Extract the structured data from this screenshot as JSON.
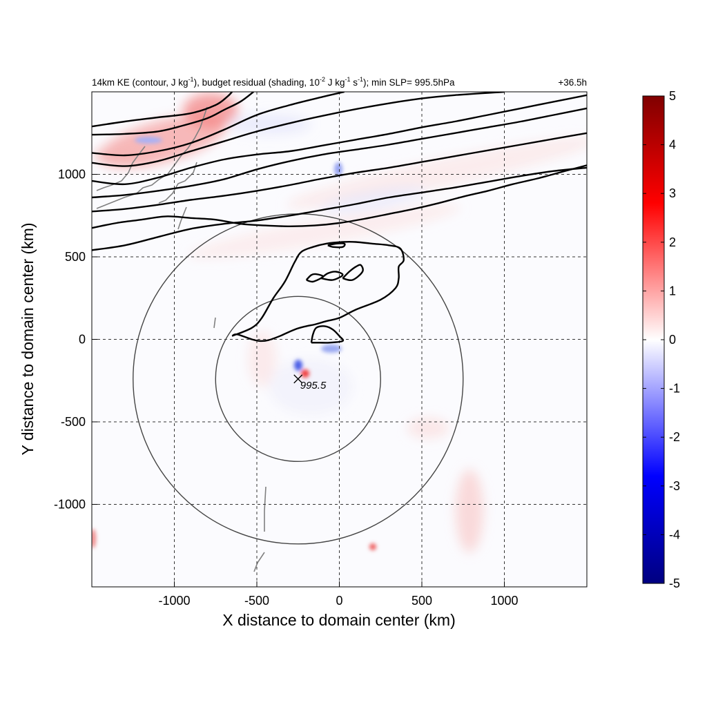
{
  "chart_data": {
    "type": "contour",
    "title_parts": {
      "p1": "14km KE (contour, J kg",
      "p1_sup": "-1",
      "p2": "), budget residual (shading, 10",
      "p2_sup": "-2",
      "p3": " J kg",
      "p3_sup": "-1",
      "p4": " s",
      "p4_sup": "-1",
      "p5": "); min SLP= 995.5hPa"
    },
    "time_label": "+36.5h",
    "xlabel": "X distance to domain center (km)",
    "ylabel": "Y distance to domain center (km)",
    "xlim": [
      -1500,
      1500
    ],
    "ylim": [
      -1500,
      1500
    ],
    "xticks": [
      -1000,
      -500,
      0,
      500,
      1000
    ],
    "yticks": [
      1000,
      500,
      0,
      -500,
      -1000
    ],
    "xtick_labels": [
      "-1000",
      "-500",
      "0",
      "500",
      "1000"
    ],
    "ytick_labels": [
      "1000",
      "500",
      "0",
      "-500",
      "-1000"
    ],
    "grid": "dashed",
    "colorbar": {
      "range": [
        -5,
        5
      ],
      "ticks": [
        5,
        4,
        3,
        2,
        1,
        0,
        -1,
        -2,
        -3,
        -4,
        -5
      ],
      "tick_labels": [
        "5",
        "4",
        "3",
        "2",
        "1",
        "0",
        "-1",
        "-2",
        "-3",
        "-4",
        "-5"
      ],
      "colormap": [
        "#000080",
        "#0000ff",
        "#ffffff",
        "#ff0000",
        "#800000"
      ]
    },
    "center_marker": {
      "x": -250,
      "y": -240,
      "label": "995.5"
    },
    "range_rings": [
      {
        "center_x": -250,
        "center_y": -240,
        "radius": 500
      },
      {
        "center_x": -250,
        "center_y": -240,
        "radius": 1000
      }
    ],
    "contours": [
      [
        [
          -1500,
          1290
        ],
        [
          -1300,
          1320
        ],
        [
          -1100,
          1345
        ],
        [
          -900,
          1370
        ],
        [
          -750,
          1420
        ],
        [
          -680,
          1470
        ],
        [
          -650,
          1500
        ]
      ],
      [
        [
          -1500,
          1240
        ],
        [
          -1300,
          1245
        ],
        [
          -1100,
          1260
        ],
        [
          -950,
          1295
        ],
        [
          -800,
          1340
        ],
        [
          -700,
          1390
        ],
        [
          -600,
          1440
        ],
        [
          -520,
          1500
        ]
      ],
      [
        [
          -1500,
          1130
        ],
        [
          -1300,
          1115
        ],
        [
          -1100,
          1140
        ],
        [
          -900,
          1190
        ],
        [
          -700,
          1270
        ],
        [
          -500,
          1360
        ],
        [
          -300,
          1420
        ],
        [
          -100,
          1470
        ],
        [
          30,
          1500
        ]
      ],
      [
        [
          -1500,
          1070
        ],
        [
          -1300,
          1050
        ],
        [
          -1100,
          1080
        ],
        [
          -900,
          1140
        ],
        [
          -700,
          1200
        ],
        [
          -500,
          1260
        ],
        [
          -300,
          1310
        ],
        [
          -100,
          1355
        ],
        [
          100,
          1395
        ],
        [
          300,
          1430
        ],
        [
          500,
          1460
        ],
        [
          700,
          1480
        ],
        [
          1000,
          1500
        ]
      ],
      [
        [
          -1500,
          960
        ],
        [
          -1300,
          940
        ],
        [
          -1100,
          980
        ],
        [
          -900,
          1040
        ],
        [
          -700,
          1090
        ],
        [
          -500,
          1120
        ],
        [
          -300,
          1140
        ],
        [
          -100,
          1175
        ],
        [
          100,
          1210
        ],
        [
          300,
          1245
        ],
        [
          500,
          1285
        ],
        [
          700,
          1320
        ],
        [
          900,
          1360
        ],
        [
          1100,
          1400
        ],
        [
          1300,
          1440
        ],
        [
          1500,
          1480
        ]
      ],
      [
        [
          -1500,
          860
        ],
        [
          -1300,
          875
        ],
        [
          -1100,
          900
        ],
        [
          -900,
          930
        ],
        [
          -700,
          970
        ],
        [
          -500,
          1030
        ],
        [
          -300,
          1080
        ],
        [
          -100,
          1120
        ],
        [
          100,
          1150
        ],
        [
          300,
          1180
        ],
        [
          500,
          1215
        ],
        [
          700,
          1250
        ],
        [
          900,
          1285
        ],
        [
          1100,
          1320
        ],
        [
          1300,
          1360
        ],
        [
          1500,
          1400
        ]
      ],
      [
        [
          -1500,
          775
        ],
        [
          -1300,
          790
        ],
        [
          -1100,
          815
        ],
        [
          -900,
          845
        ],
        [
          -700,
          870
        ],
        [
          -500,
          900
        ],
        [
          -300,
          935
        ],
        [
          -100,
          975
        ],
        [
          100,
          1010
        ],
        [
          300,
          1040
        ],
        [
          500,
          1075
        ],
        [
          700,
          1110
        ],
        [
          900,
          1145
        ],
        [
          1100,
          1180
        ],
        [
          1300,
          1215
        ],
        [
          1500,
          1250
        ]
      ],
      [
        [
          -1500,
          540
        ],
        [
          -1300,
          570
        ],
        [
          -1100,
          620
        ],
        [
          -900,
          670
        ],
        [
          -700,
          700
        ],
        [
          -500,
          720
        ],
        [
          -300,
          750
        ],
        [
          -100,
          785
        ],
        [
          100,
          820
        ],
        [
          300,
          860
        ],
        [
          500,
          890
        ],
        [
          700,
          920
        ],
        [
          900,
          955
        ],
        [
          1100,
          990
        ],
        [
          1300,
          1020
        ],
        [
          1500,
          1040
        ]
      ],
      [
        [
          -1500,
          675
        ],
        [
          -1350,
          705
        ],
        [
          -1200,
          725
        ],
        [
          -1050,
          745
        ],
        [
          -900,
          735
        ],
        [
          -750,
          725
        ],
        [
          -600,
          700
        ],
        [
          -450,
          690
        ],
        [
          -300,
          685
        ],
        [
          -150,
          690
        ],
        [
          0,
          705
        ],
        [
          150,
          730
        ],
        [
          300,
          760
        ],
        [
          450,
          790
        ],
        [
          600,
          825
        ],
        [
          750,
          865
        ],
        [
          900,
          900
        ],
        [
          1050,
          940
        ],
        [
          1200,
          975
        ],
        [
          1350,
          1015
        ],
        [
          1500,
          1055
        ]
      ],
      [
        [
          -650,
          20
        ],
        [
          -530,
          70
        ],
        [
          -470,
          130
        ],
        [
          -400,
          250
        ],
        [
          -330,
          350
        ],
        [
          -270,
          470
        ],
        [
          -230,
          530
        ],
        [
          -160,
          560
        ],
        [
          -80,
          580
        ],
        [
          20,
          590
        ],
        [
          100,
          590
        ],
        [
          200,
          580
        ],
        [
          300,
          570
        ],
        [
          370,
          550
        ],
        [
          390,
          480
        ],
        [
          360,
          440
        ],
        [
          360,
          370
        ],
        [
          340,
          310
        ],
        [
          250,
          240
        ],
        [
          100,
          180
        ],
        [
          0,
          130
        ],
        [
          -80,
          110
        ],
        [
          -150,
          90
        ],
        [
          -200,
          80
        ],
        [
          -270,
          60
        ],
        [
          -360,
          20
        ],
        [
          -430,
          -5
        ],
        [
          -480,
          -10
        ],
        [
          -530,
          0
        ],
        [
          -620,
          30
        ],
        [
          -650,
          20
        ]
      ],
      [
        [
          -170,
          -20
        ],
        [
          -160,
          30
        ],
        [
          -140,
          70
        ],
        [
          -90,
          80
        ],
        [
          -40,
          60
        ],
        [
          0,
          20
        ],
        [
          20,
          -10
        ],
        [
          -60,
          -20
        ],
        [
          -120,
          -20
        ],
        [
          -170,
          -20
        ]
      ],
      [
        [
          -200,
          360
        ],
        [
          -170,
          390
        ],
        [
          -140,
          395
        ],
        [
          -100,
          380
        ],
        [
          -160,
          350
        ],
        [
          -200,
          360
        ]
      ],
      [
        [
          -110,
          370
        ],
        [
          -70,
          400
        ],
        [
          -20,
          410
        ],
        [
          20,
          390
        ],
        [
          -40,
          360
        ],
        [
          -110,
          370
        ]
      ],
      [
        [
          20,
          370
        ],
        [
          60,
          410
        ],
        [
          100,
          440
        ],
        [
          130,
          450
        ],
        [
          140,
          410
        ],
        [
          80,
          360
        ],
        [
          20,
          370
        ]
      ],
      [
        [
          -70,
          570
        ],
        [
          -20,
          580
        ],
        [
          30,
          580
        ],
        [
          20,
          560
        ],
        [
          -40,
          560
        ],
        [
          -70,
          570
        ]
      ]
    ]
  }
}
